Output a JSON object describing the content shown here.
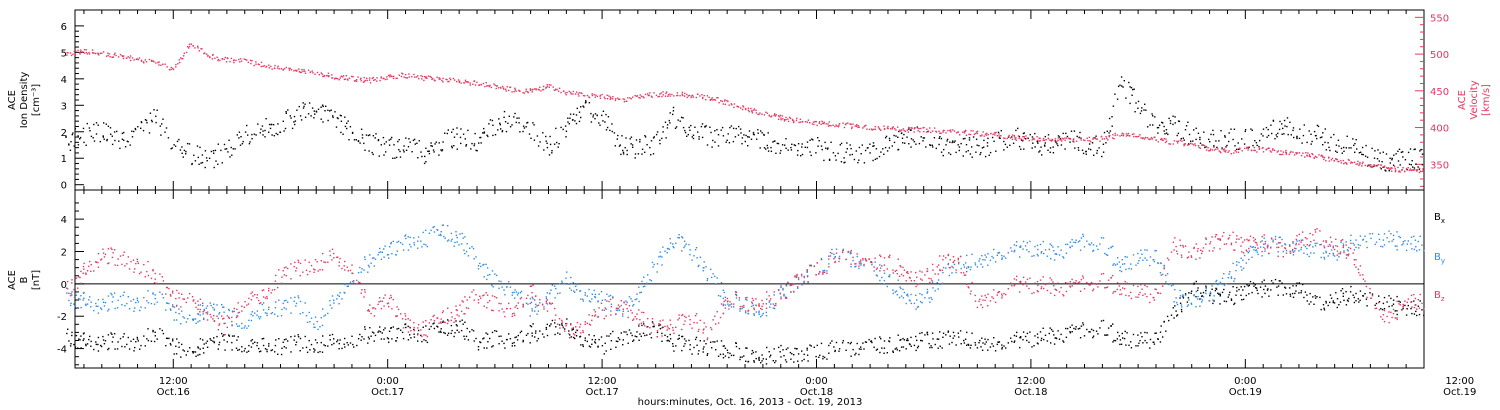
{
  "chart_data": [
    {
      "type": "scatter",
      "ylabel_left": [
        "ACE",
        "Ion Density",
        "[cm⁻³]"
      ],
      "ylabel_right": [
        "ACE",
        "Velocity",
        "[km/s]"
      ],
      "ylim_left": [
        -0.2,
        6.6
      ],
      "ylim_right": [
        315,
        560
      ],
      "left_ticks": [
        0,
        1,
        2,
        3,
        4,
        5,
        6
      ],
      "right_ticks": [
        350,
        400,
        450,
        500,
        550
      ],
      "series": [
        {
          "color": "#000000",
          "axis": "left",
          "x": [
            6.5,
            7.5,
            8.5,
            9.5,
            10.5,
            11.5,
            12.5,
            13.5,
            14.5,
            15.5,
            16.5,
            17.5,
            18.5,
            19.5,
            20.5,
            21.5,
            22.5,
            23.5,
            24.5,
            25.5,
            26.5,
            27.5,
            28.5,
            29.5,
            30.5,
            31.5,
            32.5,
            33.5,
            34.5,
            35.5,
            36.5,
            37.5,
            38.5,
            39.5,
            40.5,
            41.5,
            42.5,
            43.5,
            44.5,
            45.5,
            46.5,
            47.5,
            48.5,
            49.5,
            50.5,
            51.5,
            52.5,
            53.5,
            54.5,
            55.5,
            56.5,
            57.5,
            58.5,
            59.5,
            60.5,
            61.5,
            62.5,
            63.5,
            64.5,
            65.5,
            66.5,
            67.5,
            68.5,
            69.5,
            70.5,
            71.5,
            72.5,
            73.5,
            74.5,
            75.5,
            76.5,
            77.5,
            78.5,
            79.5,
            80.5,
            81.5
          ],
          "y": [
            1.6,
            1.9,
            2.0,
            1.8,
            2.0,
            2.6,
            1.5,
            1.2,
            1.0,
            1.3,
            1.9,
            2.1,
            2.3,
            2.7,
            2.9,
            2.4,
            2.0,
            1.6,
            1.4,
            1.5,
            1.2,
            1.6,
            1.8,
            1.7,
            2.3,
            2.5,
            2.1,
            1.5,
            2.2,
            2.9,
            2.5,
            1.5,
            1.4,
            1.6,
            2.6,
            2.1,
            1.8,
            1.9,
            1.8,
            1.7,
            1.6,
            1.5,
            1.4,
            1.2,
            1.2,
            1.3,
            1.6,
            1.7,
            1.9,
            1.5,
            1.5,
            1.4,
            1.6,
            1.8,
            1.6,
            1.5,
            1.7,
            1.6,
            1.4,
            3.8,
            3.0,
            2.2,
            2.3,
            1.9,
            1.7,
            1.7,
            1.8,
            1.9,
            2.2,
            2.0,
            1.9,
            1.6,
            1.4,
            1.0,
            0.9,
            1.0
          ]
        },
        {
          "color": "#e8365e",
          "axis": "right",
          "x": [
            6.5,
            7.5,
            8.5,
            9.5,
            10.5,
            11.5,
            12.5,
            13.5,
            14.5,
            15.5,
            16.5,
            17.5,
            18.5,
            19.5,
            20.5,
            21.5,
            22.5,
            23.5,
            24.5,
            25.5,
            26.5,
            27.5,
            28.5,
            29.5,
            30.5,
            31.5,
            32.5,
            33.5,
            34.5,
            35.5,
            36.5,
            37.5,
            38.5,
            39.5,
            40.5,
            41.5,
            42.5,
            43.5,
            44.5,
            45.5,
            46.5,
            47.5,
            48.5,
            49.5,
            50.5,
            51.5,
            52.5,
            53.5,
            54.5,
            55.5,
            56.5,
            57.5,
            58.5,
            59.5,
            60.5,
            61.5,
            62.5,
            63.5,
            64.5,
            65.5,
            66.5,
            67.5,
            68.5,
            69.5,
            70.5,
            71.5,
            72.5,
            73.5,
            74.5,
            75.5,
            76.5,
            77.5,
            78.5,
            79.5,
            80.5,
            81.5
          ],
          "y": [
            500,
            505,
            502,
            498,
            493,
            490,
            480,
            515,
            498,
            493,
            491,
            486,
            481,
            478,
            475,
            470,
            467,
            465,
            470,
            472,
            468,
            467,
            463,
            461,
            457,
            452,
            450,
            457,
            448,
            445,
            444,
            438,
            444,
            446,
            447,
            444,
            441,
            434,
            426,
            420,
            414,
            410,
            407,
            405,
            403,
            401,
            400,
            398,
            398,
            396,
            394,
            393,
            391,
            387,
            386,
            383,
            385,
            384,
            386,
            391,
            389,
            385,
            381,
            378,
            372,
            368,
            371,
            371,
            367,
            365,
            361,
            357,
            353,
            350,
            345,
            343
          ]
        }
      ]
    },
    {
      "type": "scatter",
      "ylabel_left": [
        "ACE",
        "B",
        "[nT]"
      ],
      "ylim": [
        -5.2,
        5.8
      ],
      "ticks": [
        -4,
        -2,
        0,
        2,
        4
      ],
      "zero_line": true,
      "series": [
        {
          "name": "B",
          "sub": "x",
          "color": "#000000",
          "x": [
            6.5,
            7.5,
            8.5,
            9.5,
            10.5,
            11.5,
            12.5,
            13.5,
            14.5,
            15.5,
            16.5,
            17.5,
            18.5,
            19.5,
            20.5,
            21.5,
            22.5,
            23.5,
            24.5,
            25.5,
            26.5,
            27.5,
            28.5,
            29.5,
            30.5,
            31.5,
            32.5,
            33.5,
            34.5,
            35.5,
            36.5,
            37.5,
            38.5,
            39.5,
            40.5,
            41.5,
            42.5,
            43.5,
            44.5,
            45.5,
            46.5,
            47.5,
            48.5,
            49.5,
            50.5,
            51.5,
            52.5,
            53.5,
            54.5,
            55.5,
            56.5,
            57.5,
            58.5,
            59.5,
            60.5,
            61.5,
            62.5,
            63.5,
            64.5,
            65.5,
            66.5,
            67.5,
            68.5,
            69.5,
            70.5,
            71.5,
            72.5,
            73.5,
            74.5,
            75.5,
            76.5,
            77.5,
            78.5,
            79.5,
            80.5,
            81.5
          ],
          "y": [
            -3.3,
            -3.5,
            -3.6,
            -3.5,
            -3.6,
            -2.9,
            -3.9,
            -4.0,
            -3.7,
            -3.5,
            -3.7,
            -3.8,
            -3.8,
            -3.6,
            -3.8,
            -3.5,
            -3.4,
            -3.0,
            -3.2,
            -2.9,
            -3.1,
            -2.8,
            -2.6,
            -3.5,
            -3.3,
            -3.6,
            -3.0,
            -2.8,
            -2.5,
            -3.4,
            -3.8,
            -3.2,
            -3.0,
            -2.8,
            -3.6,
            -3.8,
            -3.9,
            -4.0,
            -4.3,
            -4.4,
            -4.2,
            -4.3,
            -4.1,
            -4.0,
            -3.9,
            -3.7,
            -3.7,
            -3.6,
            -3.5,
            -3.4,
            -3.4,
            -3.5,
            -3.6,
            -3.4,
            -3.3,
            -3.2,
            -3.0,
            -2.9,
            -2.7,
            -3.2,
            -3.5,
            -3.3,
            -1.8,
            -0.3,
            -0.6,
            -0.8,
            -0.4,
            -0.2,
            -0.1,
            -0.3,
            -1.2,
            -0.9,
            -0.6,
            -0.8,
            -1.2,
            -1.4
          ]
        },
        {
          "name": "B",
          "sub": "y",
          "color": "#2f8be8",
          "x": [
            6.5,
            7.5,
            8.5,
            9.5,
            10.5,
            11.5,
            12.5,
            13.5,
            14.5,
            15.5,
            16.5,
            17.5,
            18.5,
            19.5,
            20.5,
            21.5,
            22.5,
            23.5,
            24.5,
            25.5,
            26.5,
            27.5,
            28.5,
            29.5,
            30.5,
            31.5,
            32.5,
            33.5,
            34.5,
            35.5,
            36.5,
            37.5,
            38.5,
            39.5,
            40.5,
            41.5,
            42.5,
            43.5,
            44.5,
            45.5,
            46.5,
            47.5,
            48.5,
            49.5,
            50.5,
            51.5,
            52.5,
            53.5,
            54.5,
            55.5,
            56.5,
            57.5,
            58.5,
            59.5,
            60.5,
            61.5,
            62.5,
            63.5,
            64.5,
            65.5,
            66.5,
            67.5,
            68.5,
            69.5,
            70.5,
            71.5,
            72.5,
            73.5,
            74.5,
            75.5,
            76.5,
            77.5,
            78.5,
            79.5,
            80.5,
            81.5
          ],
          "y": [
            -0.8,
            -1.0,
            -1.3,
            -0.9,
            -1.2,
            -0.6,
            -1.8,
            -2.0,
            -1.5,
            -1.9,
            -2.3,
            -1.6,
            -1.4,
            -1.2,
            -2.5,
            -1.0,
            0.5,
            1.5,
            2.0,
            2.6,
            2.8,
            3.2,
            2.8,
            1.5,
            0.2,
            -0.5,
            -1.5,
            -0.8,
            0.4,
            -0.6,
            -1.0,
            -1.5,
            -0.6,
            1.2,
            2.8,
            2.0,
            0.6,
            -1.0,
            -1.3,
            -1.6,
            -0.5,
            0.3,
            1.0,
            1.8,
            1.6,
            1.2,
            0.3,
            -0.8,
            -1.2,
            0.6,
            1.2,
            1.5,
            1.9,
            2.2,
            2.3,
            2.0,
            2.2,
            2.6,
            2.4,
            1.3,
            1.6,
            1.8,
            -0.8,
            -1.1,
            -0.5,
            0.4,
            1.6,
            2.4,
            2.6,
            2.3,
            2.1,
            2.0,
            2.6,
            2.9,
            2.8,
            2.6
          ]
        },
        {
          "name": "B",
          "sub": "z",
          "color": "#e8365e",
          "x": [
            6.5,
            7.5,
            8.5,
            9.5,
            10.5,
            11.5,
            12.5,
            13.5,
            14.5,
            15.5,
            16.5,
            17.5,
            18.5,
            19.5,
            20.5,
            21.5,
            22.5,
            23.5,
            24.5,
            25.5,
            26.5,
            27.5,
            28.5,
            29.5,
            30.5,
            31.5,
            32.5,
            33.5,
            34.5,
            35.5,
            36.5,
            37.5,
            38.5,
            39.5,
            40.5,
            41.5,
            42.5,
            43.5,
            44.5,
            45.5,
            46.5,
            47.5,
            48.5,
            49.5,
            50.5,
            51.5,
            52.5,
            53.5,
            54.5,
            55.5,
            56.5,
            57.5,
            58.5,
            59.5,
            60.5,
            61.5,
            62.5,
            63.5,
            64.5,
            65.5,
            66.5,
            67.5,
            68.5,
            69.5,
            70.5,
            71.5,
            72.5,
            73.5,
            74.5,
            75.5,
            76.5,
            77.5,
            78.5,
            79.5,
            80.5,
            81.5
          ],
          "y": [
            -0.5,
            0.8,
            1.8,
            1.6,
            1.2,
            0.6,
            -1.0,
            -0.6,
            -2.2,
            -2.6,
            -0.8,
            -0.8,
            0.6,
            1.0,
            1.2,
            1.8,
            1.0,
            -1.6,
            -1.0,
            -2.4,
            -2.8,
            -2.2,
            -1.6,
            -0.6,
            -1.2,
            -1.8,
            -0.5,
            -1.4,
            -2.8,
            -2.4,
            -1.6,
            -1.2,
            -2.0,
            -2.8,
            -2.5,
            -2.2,
            -3.0,
            -0.8,
            -1.2,
            -1.0,
            -0.6,
            0.4,
            1.0,
            1.5,
            1.8,
            1.2,
            1.5,
            0.6,
            0.2,
            1.4,
            1.2,
            -1.0,
            -0.6,
            0.1,
            0.0,
            -0.1,
            -0.2,
            0.0,
            0.2,
            -0.1,
            -0.5,
            -0.6,
            2.4,
            1.8,
            2.6,
            2.8,
            2.4,
            2.6,
            2.2,
            2.7,
            3.0,
            2.4,
            2.0,
            -0.8,
            -2.2,
            -1.0
          ]
        }
      ]
    },
    {
      "type": "time_axis",
      "xlim": [
        6.5,
        82
      ],
      "tick_labels": [
        {
          "hour": 12,
          "time": "12:00",
          "date": "Oct.16"
        },
        {
          "hour": 24,
          "time": "0:00",
          "date": "Oct.17"
        },
        {
          "hour": 36,
          "time": "12:00",
          "date": "Oct.17"
        },
        {
          "hour": 48,
          "time": "0:00",
          "date": "Oct.18"
        },
        {
          "hour": 60,
          "time": "12:00",
          "date": "Oct.18"
        },
        {
          "hour": 72,
          "time": "0:00",
          "date": "Oct.19"
        },
        {
          "hour": 84,
          "time": "12:00",
          "date": "Oct.19"
        }
      ],
      "xlabel": "hours:minutes, Oct. 16, 2013 - Oct. 19, 2013"
    }
  ]
}
